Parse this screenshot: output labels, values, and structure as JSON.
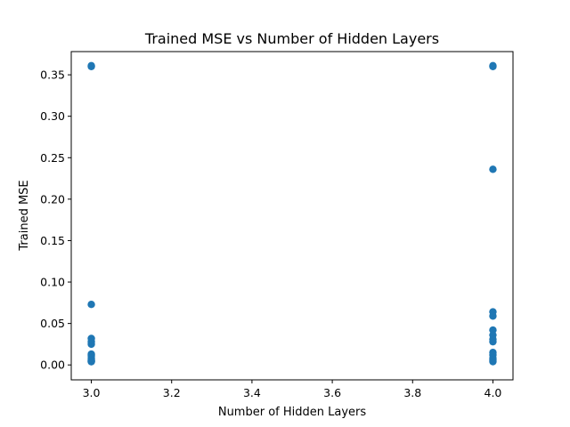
{
  "chart_data": {
    "type": "scatter",
    "title": "Trained MSE vs Number of Hidden Layers",
    "xlabel": "Number of Hidden Layers",
    "ylabel": "Trained MSE",
    "xlim": [
      2.95,
      4.05
    ],
    "ylim": [
      -0.018,
      0.378
    ],
    "xticks": [
      3.0,
      3.2,
      3.4,
      3.6,
      3.8,
      4.0
    ],
    "xtick_labels": [
      "3.0",
      "3.2",
      "3.4",
      "3.6",
      "3.8",
      "4.0"
    ],
    "yticks": [
      0.0,
      0.05,
      0.1,
      0.15,
      0.2,
      0.25,
      0.3,
      0.35
    ],
    "ytick_labels": [
      "0.00",
      "0.05",
      "0.10",
      "0.15",
      "0.20",
      "0.25",
      "0.30",
      "0.35"
    ],
    "grid": false,
    "marker_color": "#1f77b4",
    "series": [
      {
        "x": [
          3.0,
          3.0,
          3.0,
          3.0,
          3.0,
          3.0,
          3.0,
          3.0,
          3.0,
          3.0,
          3.0,
          3.0,
          3.0,
          4.0,
          4.0,
          4.0,
          4.0,
          4.0,
          4.0,
          4.0,
          4.0,
          4.0,
          4.0,
          4.0,
          4.0,
          4.0,
          4.0
        ],
        "y": [
          0.361,
          0.36,
          0.073,
          0.032,
          0.028,
          0.025,
          0.013,
          0.011,
          0.008,
          0.006,
          0.005,
          0.004,
          0.004,
          0.361,
          0.36,
          0.236,
          0.064,
          0.059,
          0.042,
          0.036,
          0.031,
          0.028,
          0.015,
          0.012,
          0.008,
          0.006,
          0.004
        ]
      }
    ]
  }
}
